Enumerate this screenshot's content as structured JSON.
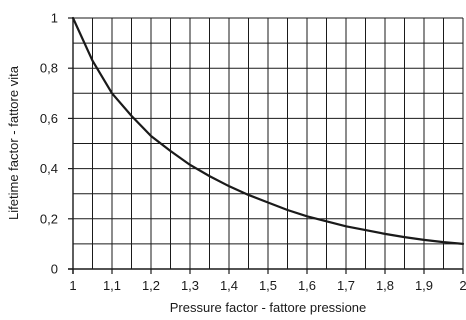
{
  "chart_data": {
    "type": "line",
    "title": "",
    "xlabel": "Pressure factor - fattore pressione",
    "ylabel": "Lifetime factor - fattore vita",
    "xlim": [
      1,
      2
    ],
    "ylim": [
      0,
      1
    ],
    "x_ticks": [
      1.0,
      1.1,
      1.2,
      1.3,
      1.4,
      1.5,
      1.6,
      1.7,
      1.8,
      1.9,
      2.0
    ],
    "x_tick_labels": [
      "1",
      "1,1",
      "1,2",
      "1,3",
      "1,4",
      "1,5",
      "1,6",
      "1,7",
      "1,8",
      "1,9",
      "2"
    ],
    "y_ticks": [
      0,
      0.2,
      0.4,
      0.6,
      0.8,
      1.0
    ],
    "y_tick_labels": [
      "0",
      "0,2",
      "0,4",
      "0,6",
      "0,8",
      "1"
    ],
    "x_minor_gridlines": [
      1.05,
      1.15,
      1.25,
      1.35,
      1.45,
      1.55,
      1.65,
      1.75,
      1.85,
      1.95
    ],
    "y_minor_gridlines": [
      0.1,
      0.3,
      0.5,
      0.7,
      0.9
    ],
    "grid": true,
    "series": [
      {
        "color": "#1a1a1a",
        "x": [
          1.0,
          1.05,
          1.1,
          1.15,
          1.2,
          1.25,
          1.3,
          1.35,
          1.4,
          1.45,
          1.5,
          1.55,
          1.6,
          1.65,
          1.7,
          1.75,
          1.8,
          1.85,
          1.9,
          1.95,
          2.0
        ],
        "y": [
          1.0,
          0.83,
          0.7,
          0.61,
          0.53,
          0.47,
          0.415,
          0.37,
          0.33,
          0.295,
          0.265,
          0.235,
          0.21,
          0.19,
          0.17,
          0.155,
          0.14,
          0.127,
          0.116,
          0.107,
          0.1
        ]
      }
    ]
  }
}
